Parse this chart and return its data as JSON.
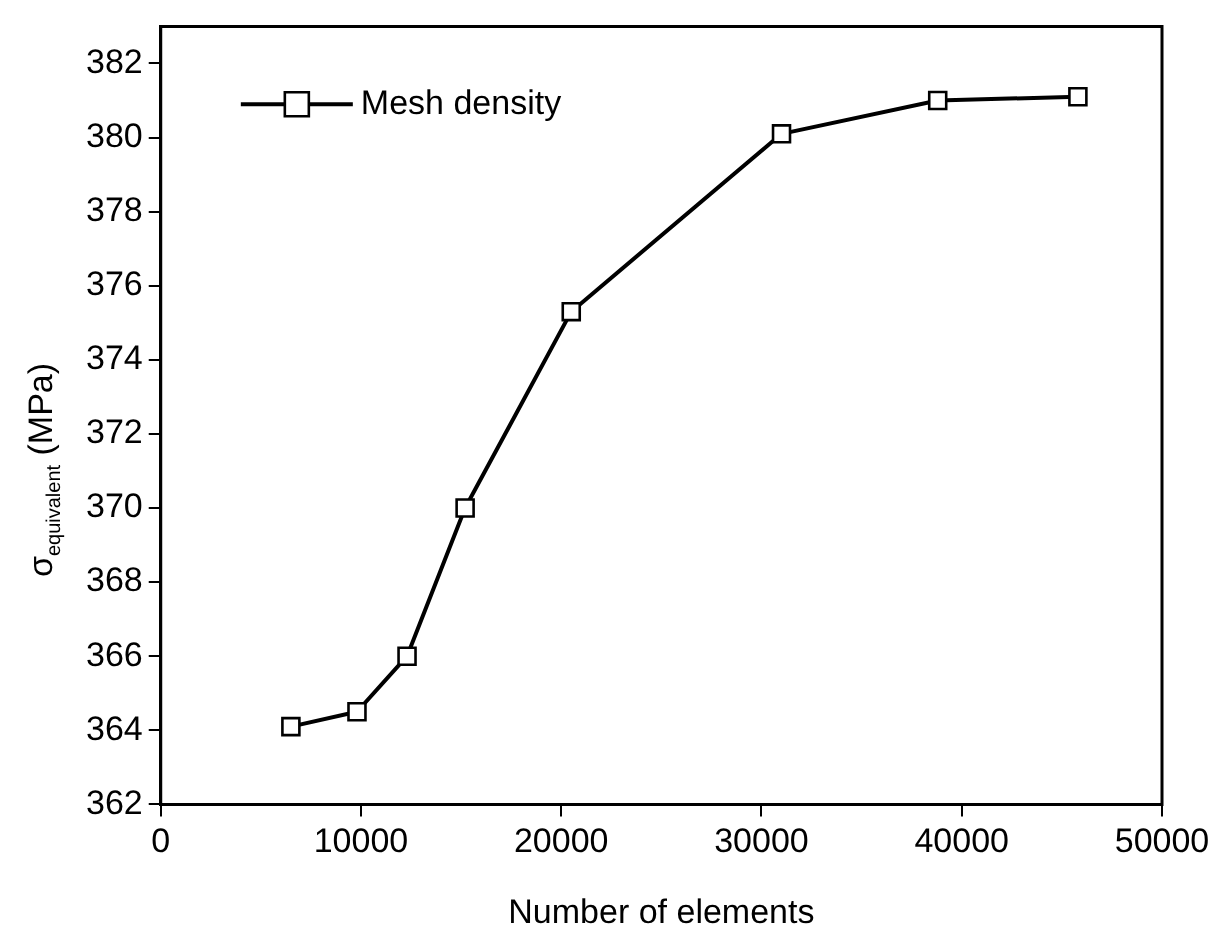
{
  "chart_data": {
    "type": "line",
    "xlabel": "Number of elements",
    "ylabel": "σ$_{equivalent}$ (MPa)",
    "x": [
      6500,
      9800,
      12300,
      15200,
      20500,
      31000,
      38800,
      45800
    ],
    "series": [
      {
        "name": "Mesh density",
        "color": "#000000",
        "values": [
          364.1,
          364.5,
          366.0,
          370.0,
          375.3,
          380.1,
          381.0,
          381.1
        ]
      }
    ],
    "xlim": [
      0,
      50000
    ],
    "xticks": [
      0,
      10000,
      20000,
      30000,
      40000,
      50000
    ],
    "ylim": [
      362,
      383
    ],
    "yticks": [
      362,
      364,
      366,
      368,
      370,
      372,
      374,
      376,
      378,
      380,
      382
    ],
    "grid": false,
    "legend": "top left",
    "marker": "square",
    "line_style": "solid"
  }
}
